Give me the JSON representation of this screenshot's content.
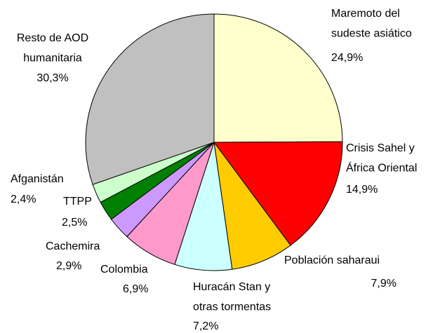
{
  "chart_data": {
    "type": "pie",
    "categories": [
      [
        "Maremoto del",
        "sudeste asiático"
      ],
      [
        "Crisis Sahel y",
        "África Oriental"
      ],
      [
        "Población saharaui"
      ],
      [
        "Huracán Stan y",
        "otras tormentas"
      ],
      [
        "Colombia"
      ],
      [
        "Cachemira"
      ],
      [
        "TTPP"
      ],
      [
        "Afganistán"
      ],
      [
        "Resto de AOD",
        "humanitaria"
      ]
    ],
    "values": [
      24.9,
      14.9,
      7.9,
      7.2,
      6.9,
      2.9,
      2.5,
      2.4,
      30.3
    ],
    "value_labels": [
      "24,9%",
      "14,9%",
      "7,9%",
      "7,2%",
      "6,9%",
      "2,9%",
      "2,5%",
      "2,4%",
      "30,3%"
    ],
    "colors": [
      "#ffffcc",
      "#ff0000",
      "#ffcc00",
      "#ccffff",
      "#ff99cc",
      "#cc99ff",
      "#008000",
      "#ccffcc",
      "#c0c0c0"
    ]
  }
}
